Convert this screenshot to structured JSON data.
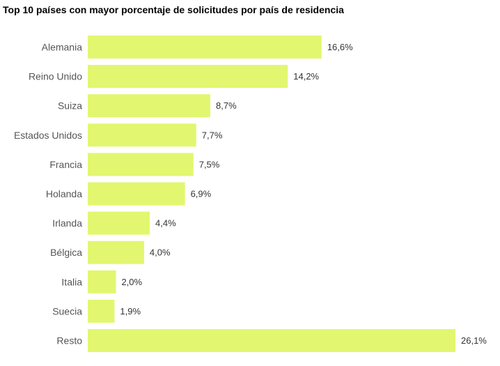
{
  "chart_data": {
    "type": "bar",
    "orientation": "horizontal",
    "title": "Top 10 países con mayor porcentaje de solicitudes por país de residencia",
    "categories": [
      "Alemania",
      "Reino Unido",
      "Suiza",
      "Estados Unidos",
      "Francia",
      "Holanda",
      "Irlanda",
      "Bélgica",
      "Italia",
      "Suecia",
      "Resto"
    ],
    "values": [
      16.6,
      14.2,
      8.7,
      7.7,
      7.5,
      6.9,
      4.4,
      4.0,
      2.0,
      1.9,
      26.1
    ],
    "value_labels": [
      "16,6%",
      "14,2%",
      "8,7%",
      "7,7%",
      "7,5%",
      "6,9%",
      "4,4%",
      "4,0%",
      "2,0%",
      "1,9%",
      "26,1%"
    ],
    "unit": "%",
    "xlabel": "",
    "ylabel": "",
    "xlim": [
      0,
      26.1
    ],
    "grid": false,
    "legend": "none",
    "bar_color": "#e2f76f"
  }
}
